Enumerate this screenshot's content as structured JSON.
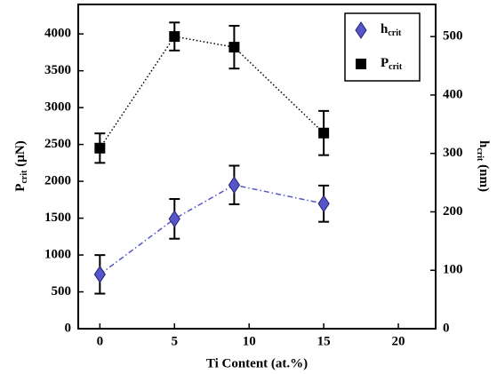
{
  "chart_data": {
    "type": "line",
    "x_label": "Ti Content (at.%)",
    "y_label": "P",
    "y_label_subscript": "crit",
    "y_label_unit": " (µN)",
    "y2_label": "h",
    "y2_label_subscript": "crit",
    "y2_label_unit": " (nm)",
    "x": [
      0,
      5,
      9,
      15
    ],
    "xlim": [
      -1.45,
      22.5
    ],
    "xticks": [
      0,
      5,
      10,
      15,
      20
    ],
    "ylim": [
      0,
      4400
    ],
    "yticks": [
      0,
      500,
      1000,
      1500,
      2000,
      2500,
      3000,
      3500,
      4000
    ],
    "y2lim": [
      0,
      555
    ],
    "y2ticks": [
      0,
      100,
      200,
      300,
      400,
      500
    ],
    "legend": "upper right",
    "series": [
      {
        "name": "h",
        "name_subscript": "crit",
        "color": "#5555cc",
        "marker": "diamond",
        "axis": "y2",
        "values": [
          93,
          188,
          246,
          214
        ],
        "errors": [
          33,
          34,
          33,
          31
        ]
      },
      {
        "name": "P",
        "name_subscript": "crit",
        "color": "#000000",
        "marker": "square",
        "values": [
          2450,
          3965,
          3820,
          2655
        ],
        "errors": [
          200,
          190,
          290,
          300
        ]
      }
    ]
  }
}
